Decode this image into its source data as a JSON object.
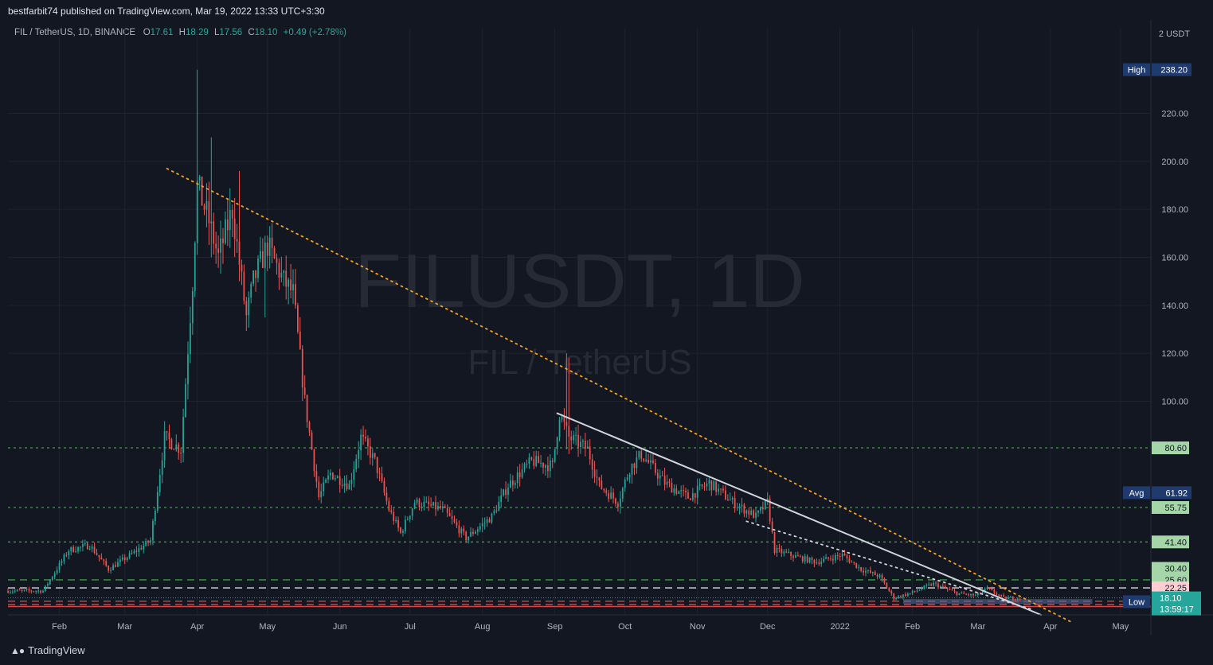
{
  "header": {
    "published": "bestfarbit74 published on TradingView.com, Mar 19, 2022 13:33 UTC+3:30",
    "symbol_line": "FIL / TetherUS, 1D, BINANCE",
    "o_label": "O",
    "o_value": "17.61",
    "h_label": "H",
    "h_value": "18.29",
    "l_label": "L",
    "l_value": "17.56",
    "c_label": "C",
    "c_value": "18.10",
    "change": "+0.49 (+2.78%)"
  },
  "footer": {
    "brand": "TradingView",
    "logo_icon": "tradingview-logo-icon"
  },
  "colors": {
    "background": "#131722",
    "up": "#26a69a",
    "down": "#ef5350",
    "trend_dotted": "#f7a21b",
    "trend_solid": "#d1d4dc",
    "level_green": "#4caf50",
    "level_white": "#ffffff",
    "level_red": "#ef5350"
  },
  "chart_data": {
    "type": "candlestick",
    "watermark_symbol": "FILUSDT, 1D",
    "watermark_name": "FIL / TetherUS",
    "currency_label": "2 USDT",
    "y_ticks": [
      "220.00",
      "200.00",
      "180.00",
      "160.00",
      "140.00",
      "120.00",
      "100.00"
    ],
    "ylim": [
      11,
      249
    ],
    "x_ticks": [
      {
        "label": "Feb",
        "date": "2021-02-01"
      },
      {
        "label": "Mar",
        "date": "2021-03-01"
      },
      {
        "label": "Apr",
        "date": "2021-04-01"
      },
      {
        "label": "May",
        "date": "2021-05-01"
      },
      {
        "label": "Jun",
        "date": "2021-06-01"
      },
      {
        "label": "Jul",
        "date": "2021-07-01"
      },
      {
        "label": "Aug",
        "date": "2021-08-01"
      },
      {
        "label": "Sep",
        "date": "2021-09-01"
      },
      {
        "label": "Oct",
        "date": "2021-10-01"
      },
      {
        "label": "Nov",
        "date": "2021-11-01"
      },
      {
        "label": "Dec",
        "date": "2021-12-01"
      },
      {
        "label": "2022",
        "date": "2022-01-01"
      },
      {
        "label": "Feb",
        "date": "2022-02-01"
      },
      {
        "label": "Mar",
        "date": "2022-03-01"
      },
      {
        "label": "Apr",
        "date": "2022-04-01"
      },
      {
        "label": "May",
        "date": "2022-05-01"
      }
    ],
    "xlim": [
      "2021-01-10",
      "2022-05-14"
    ],
    "price_path": [
      [
        "2021-01-10",
        21
      ],
      [
        "2021-01-25",
        21
      ],
      [
        "2021-02-05",
        38
      ],
      [
        "2021-02-14",
        40
      ],
      [
        "2021-02-22",
        30
      ],
      [
        "2021-03-05",
        37
      ],
      [
        "2021-03-12",
        42
      ],
      [
        "2021-03-18",
        85
      ],
      [
        "2021-03-25",
        80
      ],
      [
        "2021-03-30",
        150
      ],
      [
        "2021-04-01",
        190
      ],
      [
        "2021-04-06",
        175
      ],
      [
        "2021-04-10",
        160
      ],
      [
        "2021-04-16",
        180
      ],
      [
        "2021-04-22",
        135
      ],
      [
        "2021-04-25",
        150
      ],
      [
        "2021-05-01",
        165
      ],
      [
        "2021-05-08",
        150
      ],
      [
        "2021-05-12",
        145
      ],
      [
        "2021-05-17",
        100
      ],
      [
        "2021-05-23",
        60
      ],
      [
        "2021-05-28",
        70
      ],
      [
        "2021-06-05",
        65
      ],
      [
        "2021-06-10",
        85
      ],
      [
        "2021-06-16",
        75
      ],
      [
        "2021-06-22",
        55
      ],
      [
        "2021-06-27",
        45
      ],
      [
        "2021-07-03",
        58
      ],
      [
        "2021-07-15",
        55
      ],
      [
        "2021-07-25",
        43
      ],
      [
        "2021-08-05",
        52
      ],
      [
        "2021-08-12",
        65
      ],
      [
        "2021-08-22",
        75
      ],
      [
        "2021-08-31",
        73
      ],
      [
        "2021-09-03",
        95
      ],
      [
        "2021-09-07",
        85
      ],
      [
        "2021-09-15",
        80
      ],
      [
        "2021-09-20",
        65
      ],
      [
        "2021-09-28",
        58
      ],
      [
        "2021-10-03",
        72
      ],
      [
        "2021-10-08",
        78
      ],
      [
        "2021-10-18",
        66
      ],
      [
        "2021-10-28",
        60
      ],
      [
        "2021-11-06",
        66
      ],
      [
        "2021-11-16",
        58
      ],
      [
        "2021-11-26",
        52
      ],
      [
        "2021-12-01",
        58
      ],
      [
        "2021-12-04",
        38
      ],
      [
        "2021-12-14",
        35
      ],
      [
        "2021-12-22",
        33
      ],
      [
        "2022-01-02",
        36
      ],
      [
        "2022-01-10",
        30
      ],
      [
        "2022-01-18",
        27
      ],
      [
        "2022-01-24",
        18
      ],
      [
        "2022-01-31",
        20
      ],
      [
        "2022-02-10",
        24
      ],
      [
        "2022-02-20",
        20
      ],
      [
        "2022-02-28",
        19
      ],
      [
        "2022-03-05",
        22
      ],
      [
        "2022-03-12",
        18
      ],
      [
        "2022-03-19",
        18.1
      ]
    ],
    "wick_spikes": [
      {
        "date": "2021-04-01",
        "high": 238.2,
        "low": 170
      },
      {
        "date": "2021-04-07",
        "high": 210,
        "low": 160
      },
      {
        "date": "2021-04-19",
        "high": 196,
        "low": 150
      },
      {
        "date": "2021-04-30",
        "high": 169,
        "low": 135
      },
      {
        "date": "2021-09-06",
        "high": 120,
        "low": 80
      },
      {
        "date": "2021-09-07",
        "high": 118,
        "low": 78
      }
    ],
    "levels": [
      {
        "value": 80.6,
        "label": "80.60",
        "style": "dotted",
        "color": "#4caf50"
      },
      {
        "value": 55.75,
        "label": "55.75",
        "style": "dotted",
        "color": "#4caf50"
      },
      {
        "value": 41.4,
        "label": "41.40",
        "style": "dotted",
        "color": "#4caf50"
      },
      {
        "value": 25.6,
        "label": "25.60",
        "style": "dashed",
        "color": "#4caf50"
      },
      {
        "value": 22.25,
        "label": "22.25",
        "style": "dashed",
        "color": "#ffffff"
      },
      {
        "value": 16.7,
        "label": "16.70",
        "style": "dashed",
        "color": "#ef5350"
      },
      {
        "value": 14.5,
        "label": "14.50",
        "style": "solid",
        "color": "#ef5350"
      }
    ],
    "extra_tags": [
      {
        "value": 30.4,
        "label": "30.40",
        "color": "#4caf50"
      }
    ],
    "dashed_red_extra": [
      15.3
    ],
    "markers": {
      "high": {
        "label": "High",
        "value": 238.2,
        "text": "238.20"
      },
      "avg": {
        "label": "Avg",
        "value": 61.92,
        "text": "61.92"
      },
      "low": {
        "label": "Low",
        "value": 16.5,
        "text": "16.50"
      },
      "last": {
        "value": 18.1,
        "text": "18.10",
        "countdown": "13:59:17"
      }
    },
    "trendlines": [
      {
        "style": "dotted",
        "color": "#f7a21b",
        "from": [
          "2021-03-19",
          197
        ],
        "to": [
          "2022-04-10",
          8
        ]
      },
      {
        "style": "solid",
        "color": "#d1d4dc",
        "from": [
          "2021-09-02",
          95
        ],
        "to": [
          "2022-03-28",
          11
        ]
      },
      {
        "style": "dotted",
        "color": "#d1d4dc",
        "from": [
          "2021-11-22",
          50
        ],
        "to": [
          "2022-03-25",
          13
        ]
      }
    ],
    "range_box": {
      "from": "2022-01-28",
      "to": "2022-04-19",
      "low": 15.6,
      "high": 17.6
    }
  }
}
